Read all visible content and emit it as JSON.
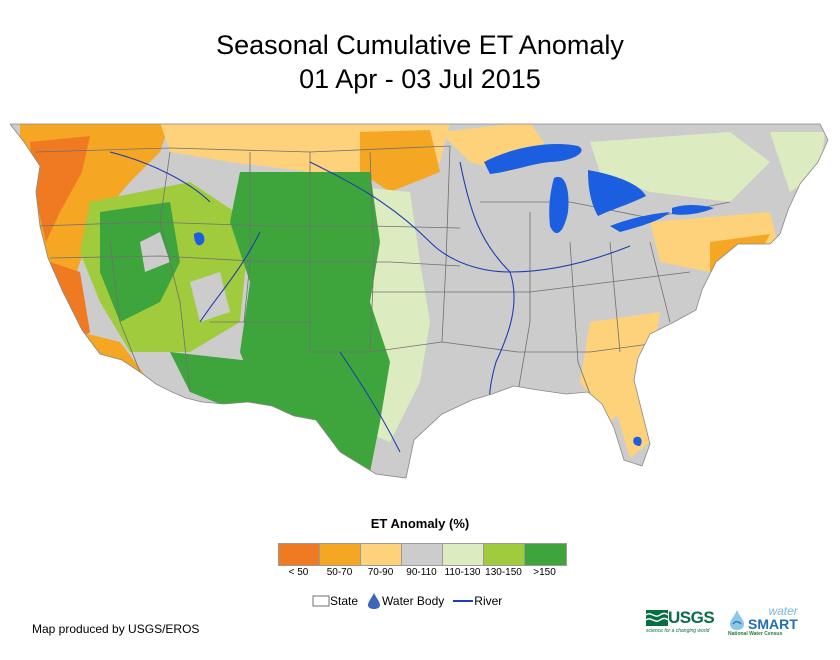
{
  "title": {
    "line1": "Seasonal Cumulative ET Anomaly",
    "line2": "01 Apr - 03 Jul 2015"
  },
  "legend": {
    "title": "ET Anomaly (%)",
    "classes": [
      {
        "label": "< 50",
        "color": "#f07a22"
      },
      {
        "label": "50-70",
        "color": "#f5a623"
      },
      {
        "label": "70-90",
        "color": "#fdd27a"
      },
      {
        "label": "90-110",
        "color": "#cccccc"
      },
      {
        "label": "110-130",
        "color": "#dcecc0"
      },
      {
        "label": "130-150",
        "color": "#9fcb3c"
      },
      {
        "label": ">150",
        "color": "#3da53b"
      }
    ]
  },
  "key": {
    "state_label": "State",
    "water_label": "Water Body",
    "river_label": "River"
  },
  "colors": {
    "water": "#1b5ee0",
    "river": "#1f3fae",
    "state_line": "#707070"
  },
  "credit": "Map produced by USGS/EROS",
  "logos": {
    "usgs_text": "USGS",
    "usgs_tagline": "science for a changing world",
    "water_small": "water",
    "smart": "SMART",
    "smart_sub": "National Water Census"
  }
}
